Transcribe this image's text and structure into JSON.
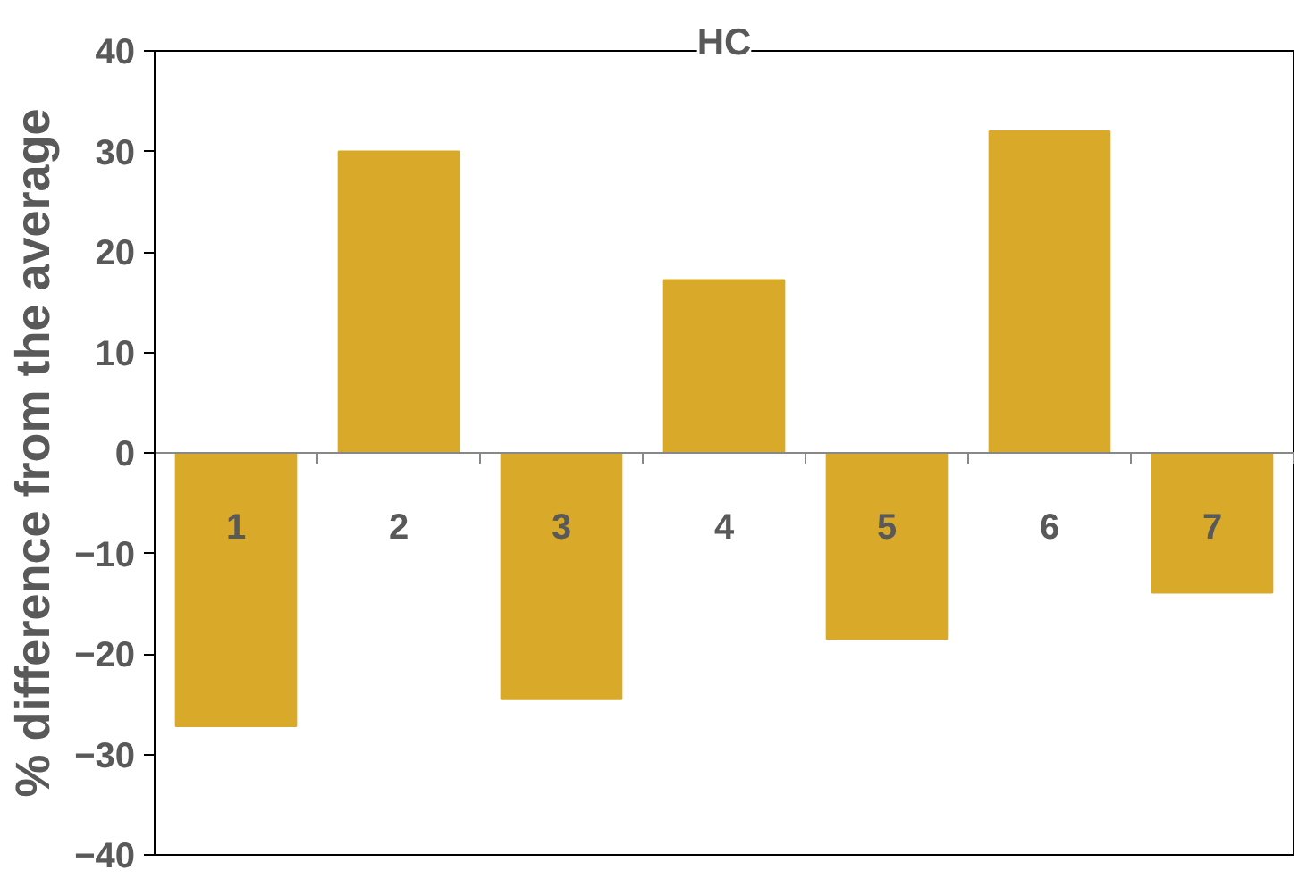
{
  "chart_data": {
    "type": "bar",
    "title": "HC",
    "ylabel": "% difference from the average",
    "categories": [
      "1",
      "2",
      "3",
      "4",
      "5",
      "6",
      "7"
    ],
    "values": [
      -27.2,
      30,
      -24.5,
      17.2,
      -18.5,
      32,
      -13.9
    ],
    "color": "#d9aa2a",
    "ylim": [
      -40,
      40
    ],
    "yticks": [
      -40,
      -30,
      -20,
      -10,
      0,
      10,
      20,
      30,
      40
    ],
    "grid": false
  }
}
